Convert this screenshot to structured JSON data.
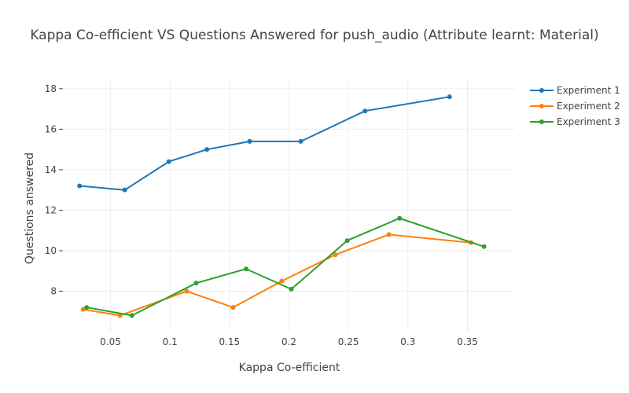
{
  "chart_data": {
    "type": "line",
    "title": "Kappa Co-efficient VS Questions Answered for push_audio (Attribute learnt: Material)",
    "xlabel": "Kappa Co-efficient",
    "ylabel": "Questions answered",
    "xlim": [
      0.01,
      0.39
    ],
    "ylim": [
      6.0,
      18.5
    ],
    "x_ticks": [
      0.05,
      0.1,
      0.15,
      0.2,
      0.25,
      0.3,
      0.35
    ],
    "x_tick_labels": [
      "0.05",
      "0.1",
      "0.15",
      "0.2",
      "0.25",
      "0.3",
      "0.35"
    ],
    "y_ticks": [
      8,
      10,
      12,
      14,
      16,
      18
    ],
    "y_tick_labels": [
      "8",
      "10",
      "12",
      "14",
      "16",
      "18"
    ],
    "grid": true,
    "legend_position": "top-right",
    "series": [
      {
        "name": "Experiment 1",
        "color": "#1f77b4",
        "x": [
          0.024,
          0.062,
          0.099,
          0.131,
          0.167,
          0.21,
          0.264,
          0.335
        ],
        "y": [
          13.2,
          13.0,
          14.4,
          15.0,
          15.4,
          15.4,
          16.9,
          17.6
        ]
      },
      {
        "name": "Experiment 2",
        "color": "#ff7f0e",
        "x": [
          0.027,
          0.058,
          0.114,
          0.153,
          0.194,
          0.239,
          0.284,
          0.353
        ],
        "y": [
          7.1,
          6.8,
          8.0,
          7.2,
          8.5,
          9.8,
          10.8,
          10.4
        ]
      },
      {
        "name": "Experiment 3",
        "color": "#2ca02c",
        "x": [
          0.03,
          0.068,
          0.122,
          0.164,
          0.202,
          0.249,
          0.293,
          0.364
        ],
        "y": [
          7.2,
          6.8,
          8.4,
          9.1,
          8.1,
          10.5,
          11.6,
          10.2
        ]
      }
    ]
  }
}
